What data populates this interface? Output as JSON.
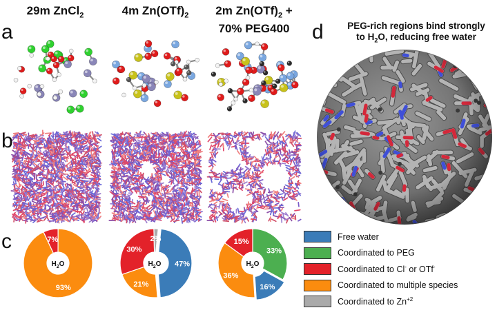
{
  "panel_labels": {
    "a": "a",
    "b": "b",
    "c": "c",
    "d": "d"
  },
  "columns": [
    {
      "title_main": "29m ZnCl",
      "title_sub": "2",
      "title_tail": ""
    },
    {
      "title_main": "4m Zn(OTf)",
      "title_sub": "2",
      "title_tail": ""
    },
    {
      "title_main": "2m Zn(OTf)",
      "title_sub": "2",
      "title_tail": " +",
      "title_line2": "70% PEG400"
    }
  ],
  "panel_d": {
    "caption_line1": "PEG-rich regions bind strongly",
    "caption_line2_pre": "to H",
    "caption_line2_sub": "2",
    "caption_line2_post": "O, reducing free water"
  },
  "donut_center": {
    "main": "H",
    "sub": "2",
    "tail": "O"
  },
  "legend": [
    {
      "label": "Free water",
      "color": "#3b7cb8"
    },
    {
      "label": "Coordinated to PEG",
      "color": "#4caf50"
    },
    {
      "label_pre": "Coordinated to Cl",
      "label_sup": "-",
      "label_mid": " or OTf",
      "label_sup2": "-",
      "color": "#e3222a"
    },
    {
      "label": "Coordinated to multiple species",
      "color": "#fb8c0f"
    },
    {
      "label_pre": "Coordinated to Zn",
      "label_sup": "+2",
      "color": "#aaaaaa"
    }
  ],
  "colors": {
    "free_water": "#3b7cb8",
    "peg": "#4caf50",
    "anion": "#e3222a",
    "multiple": "#fb8c0f",
    "zn": "#aaaaaa"
  },
  "chart_data": [
    {
      "type": "pie",
      "title": "29m ZnCl2",
      "slices": [
        {
          "category": "Coordinated to Cl- or OTf-",
          "value": 7,
          "label": "7%"
        },
        {
          "category": "Coordinated to multiple species",
          "value": 93,
          "label": "93%"
        }
      ]
    },
    {
      "type": "pie",
      "title": "4m Zn(OTf)2",
      "slices": [
        {
          "category": "Free water",
          "value": 47,
          "label": "47%"
        },
        {
          "category": "Coordinated to multiple species",
          "value": 21,
          "label": "21%"
        },
        {
          "category": "Coordinated to Cl- or OTf-",
          "value": 30,
          "label": "30%"
        },
        {
          "category": "Coordinated to Zn+2",
          "value": 2,
          "label": "2%"
        }
      ]
    },
    {
      "type": "pie",
      "title": "2m Zn(OTf)2 + 70% PEG400",
      "slices": [
        {
          "category": "Coordinated to PEG",
          "value": 33,
          "label": "33%"
        },
        {
          "category": "Free water",
          "value": 16,
          "label": "16%"
        },
        {
          "category": "Coordinated to multiple species",
          "value": 36,
          "label": "36%"
        },
        {
          "category": "Coordinated to Cl- or OTf-",
          "value": 15,
          "label": "15%"
        }
      ]
    }
  ]
}
